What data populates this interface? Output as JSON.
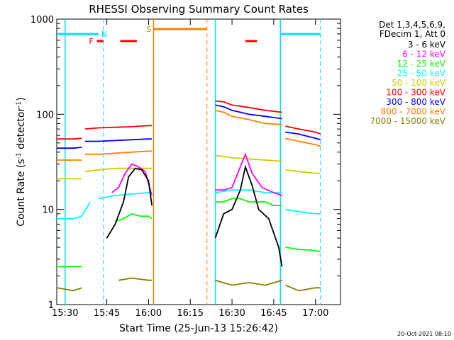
{
  "chart_data": {
    "type": "line",
    "title": "RHESSI Observing Summary Count Rates",
    "xlabel": "Start Time (25-Jun-13 15:26:42)",
    "ylabel_main": "Count Rate (s",
    "ylabel_sup1": "-1",
    "ylabel_mid": " detector",
    "ylabel_sup2": "-1",
    "ylabel_end": ")",
    "y_scale": "log",
    "ylim": [
      1,
      1000
    ],
    "xlim_minutes": [
      15.45,
      17.15
    ],
    "x_ticks": [
      {
        "label": "15:30",
        "value": 15.5
      },
      {
        "label": "15:45",
        "value": 15.75
      },
      {
        "label": "16:00",
        "value": 16.0
      },
      {
        "label": "16:15",
        "value": 16.25
      },
      {
        "label": "16:30",
        "value": 16.5
      },
      {
        "label": "16:45",
        "value": 16.75
      },
      {
        "label": "17:00",
        "value": 17.0
      }
    ],
    "y_ticks": [
      {
        "label": "1",
        "value": 1
      },
      {
        "label": "10",
        "value": 10
      },
      {
        "label": "100",
        "value": 100
      },
      {
        "label": "1000",
        "value": 1000
      }
    ],
    "legend_header": [
      "Det 1,3,4,5,6,9,",
      "FDecim 1, Att 0"
    ],
    "flags": [
      {
        "label": "N",
        "color": "#00e0ff",
        "value": 15.7
      },
      {
        "label": "F",
        "color": "#ff0000",
        "value": 15.66
      },
      {
        "label": "S",
        "color": "#ff8000",
        "value": 16.03
      }
    ],
    "series": [
      {
        "name": "3 - 6 keV",
        "color": "#000000",
        "segments": [
          {
            "x": [
              15.75,
              15.8,
              15.85,
              15.88,
              15.92,
              15.96,
              16.0,
              16.02
            ],
            "y": [
              5,
              7,
              12,
              22,
              27,
              26,
              20,
              11
            ]
          },
          {
            "x": [
              16.4,
              16.45,
              16.5,
              16.55,
              16.58,
              16.62,
              16.66,
              16.72,
              16.78,
              16.8
            ],
            "y": [
              5,
              9,
              10,
              16,
              28,
              18,
              10,
              8,
              4,
              2.5
            ]
          }
        ]
      },
      {
        "name": "6 - 12 keV",
        "color": "#ff00ff",
        "segments": [
          {
            "x": [
              15.78,
              15.82,
              15.86,
              15.9,
              15.94,
              15.98,
              16.02
            ],
            "y": [
              15,
              17,
              24,
              30,
              28,
              25,
              14
            ]
          },
          {
            "x": [
              16.4,
              16.45,
              16.5,
              16.55,
              16.58,
              16.62,
              16.68,
              16.75,
              16.8
            ],
            "y": [
              16,
              16,
              17,
              28,
              38,
              24,
              17,
              15,
              14
            ]
          }
        ]
      },
      {
        "name": "12 - 25 keV",
        "color": "#00ff00",
        "segments": [
          {
            "x": [
              15.45,
              15.55,
              15.6
            ],
            "y": [
              2.5,
              2.5,
              2.5
            ]
          },
          {
            "x": [
              15.8,
              15.85,
              15.9,
              15.95,
              16.0,
              16.02
            ],
            "y": [
              7.5,
              8,
              9,
              8.5,
              8.5,
              8
            ]
          },
          {
            "x": [
              16.4,
              16.45,
              16.5,
              16.55,
              16.6,
              16.65,
              16.7,
              16.75,
              16.8
            ],
            "y": [
              12,
              12,
              13,
              13,
              12,
              12,
              12,
              11,
              11
            ]
          },
          {
            "x": [
              16.82,
              16.9,
              17.0,
              17.03
            ],
            "y": [
              4,
              3.8,
              3.7,
              3.6
            ]
          }
        ]
      },
      {
        "name": "25 - 50 keV",
        "color": "#00ffff",
        "segments": [
          {
            "x": [
              15.45,
              15.55,
              15.6,
              15.65
            ],
            "y": [
              8,
              8,
              8.5,
              12
            ]
          },
          {
            "x": [
              15.7,
              15.8,
              15.9,
              16.0,
              16.02
            ],
            "y": [
              13,
              14,
              14.5,
              15,
              15
            ]
          },
          {
            "x": [
              16.4,
              16.5,
              16.6,
              16.7,
              16.8
            ],
            "y": [
              15,
              16,
              16,
              15,
              15
            ]
          },
          {
            "x": [
              16.82,
              16.9,
              17.0,
              17.03
            ],
            "y": [
              10,
              9.5,
              9,
              9
            ]
          }
        ]
      },
      {
        "name": "50 - 100 keV",
        "color": "#cccc00",
        "segments": [
          {
            "x": [
              15.45,
              15.55,
              15.6
            ],
            "y": [
              21,
              21,
              21
            ]
          },
          {
            "x": [
              15.62,
              15.7,
              15.8,
              15.9,
              16.0,
              16.02
            ],
            "y": [
              25,
              26,
              27,
              27,
              27,
              27
            ]
          },
          {
            "x": [
              16.4,
              16.45,
              16.5,
              16.6,
              16.7,
              16.8
            ],
            "y": [
              37,
              36,
              35,
              34,
              33,
              32
            ]
          },
          {
            "x": [
              16.82,
              16.9,
              17.0,
              17.03
            ],
            "y": [
              26,
              25,
              24,
              24
            ]
          }
        ]
      },
      {
        "name": "100 - 300 keV",
        "color": "#ff0000",
        "segments": [
          {
            "x": [
              15.45,
              15.55,
              15.6
            ],
            "y": [
              55,
              55,
              56
            ]
          },
          {
            "x": [
              15.62,
              15.7,
              15.8,
              15.9,
              16.0,
              16.02
            ],
            "y": [
              70,
              72,
              73,
              74,
              76,
              76
            ]
          },
          {
            "x": [
              16.4,
              16.45,
              16.5,
              16.6,
              16.7,
              16.8
            ],
            "y": [
              138,
              135,
              125,
              118,
              110,
              105
            ]
          },
          {
            "x": [
              16.82,
              16.9,
              17.0,
              17.03
            ],
            "y": [
              75,
              70,
              65,
              62
            ]
          }
        ]
      },
      {
        "name": "300 - 800 keV",
        "color": "#0000ff",
        "segments": [
          {
            "x": [
              15.45,
              15.55,
              15.6
            ],
            "y": [
              44,
              44,
              45
            ]
          },
          {
            "x": [
              15.62,
              15.7,
              15.8,
              15.9,
              16.0,
              16.02
            ],
            "y": [
              52,
              52,
              53,
              54,
              55,
              55
            ]
          },
          {
            "x": [
              16.4,
              16.45,
              16.5,
              16.6,
              16.7,
              16.8
            ],
            "y": [
              125,
              120,
              110,
              100,
              95,
              90
            ]
          },
          {
            "x": [
              16.82,
              16.9,
              17.0,
              17.03
            ],
            "y": [
              65,
              62,
              56,
              54
            ]
          }
        ]
      },
      {
        "name": "800 - 7000 keV",
        "color": "#ff8000",
        "segments": [
          {
            "x": [
              15.45,
              15.55,
              15.6
            ],
            "y": [
              33,
              33,
              33
            ]
          },
          {
            "x": [
              15.62,
              15.7,
              15.8,
              15.9,
              16.0,
              16.02
            ],
            "y": [
              38,
              38,
              39,
              40,
              41,
              41
            ]
          },
          {
            "x": [
              16.4,
              16.45,
              16.5,
              16.6,
              16.7,
              16.8
            ],
            "y": [
              110,
              105,
              95,
              88,
              80,
              78
            ]
          },
          {
            "x": [
              16.82,
              16.9,
              17.0,
              17.03
            ],
            "y": [
              56,
              52,
              48,
              46
            ]
          }
        ]
      },
      {
        "name": "7000 - 15000 keV",
        "color": "#808000",
        "segments": [
          {
            "x": [
              15.45,
              15.55,
              15.6
            ],
            "y": [
              1.5,
              1.4,
              1.5
            ]
          },
          {
            "x": [
              15.82,
              15.9,
              16.0,
              16.02
            ],
            "y": [
              1.8,
              1.9,
              1.8,
              1.8
            ]
          },
          {
            "x": [
              16.4,
              16.5,
              16.6,
              16.7,
              16.8
            ],
            "y": [
              1.8,
              1.6,
              1.7,
              1.6,
              1.8
            ]
          },
          {
            "x": [
              16.82,
              16.9,
              17.0,
              17.03
            ],
            "y": [
              1.6,
              1.4,
              1.5,
              1.5
            ]
          }
        ]
      }
    ],
    "footer_date": "20-Oct-2021 08:10"
  }
}
